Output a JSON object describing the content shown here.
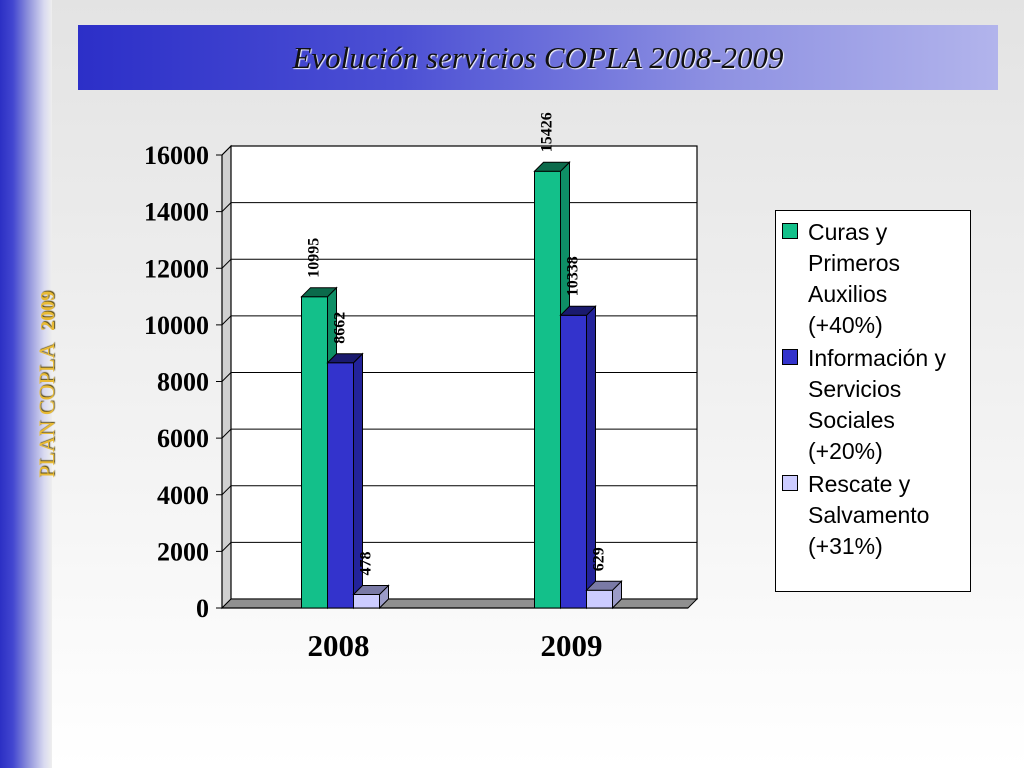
{
  "sidebar": {
    "text": "PLAN COPLA",
    "year": "2009"
  },
  "title": "Evolución servicios COPLA 2008-2009",
  "colors": {
    "series": [
      "#13c08a",
      "#3333cc",
      "#ccccff"
    ],
    "series_dark": [
      "#0b6a4b",
      "#1a1a6e",
      "#7a7aa6"
    ],
    "series_side": [
      "#0e8f66",
      "#23239a",
      "#9c9cc8"
    ]
  },
  "chart_data": {
    "type": "bar",
    "categories": [
      "2008",
      "2009"
    ],
    "series": [
      {
        "name": "Curas y\nPrimeros\nAuxilios\n(+40%)",
        "values": [
          10995,
          15426
        ]
      },
      {
        "name": "Información y\nServicios\nSociales\n(+20%)",
        "values": [
          8662,
          10338
        ]
      },
      {
        "name": "Rescate y\nSalvamento\n(+31%)",
        "values": [
          478,
          629
        ]
      }
    ],
    "ylim": [
      0,
      16000
    ],
    "yticks": [
      "0",
      "2000",
      "4000",
      "6000",
      "8000",
      "10000",
      "12000",
      "14000",
      "16000"
    ],
    "data_labels": [
      [
        "10995",
        "15426"
      ],
      [
        "8662",
        "10338"
      ],
      [
        "478",
        "629"
      ]
    ],
    "grid": true,
    "legend": "right"
  }
}
